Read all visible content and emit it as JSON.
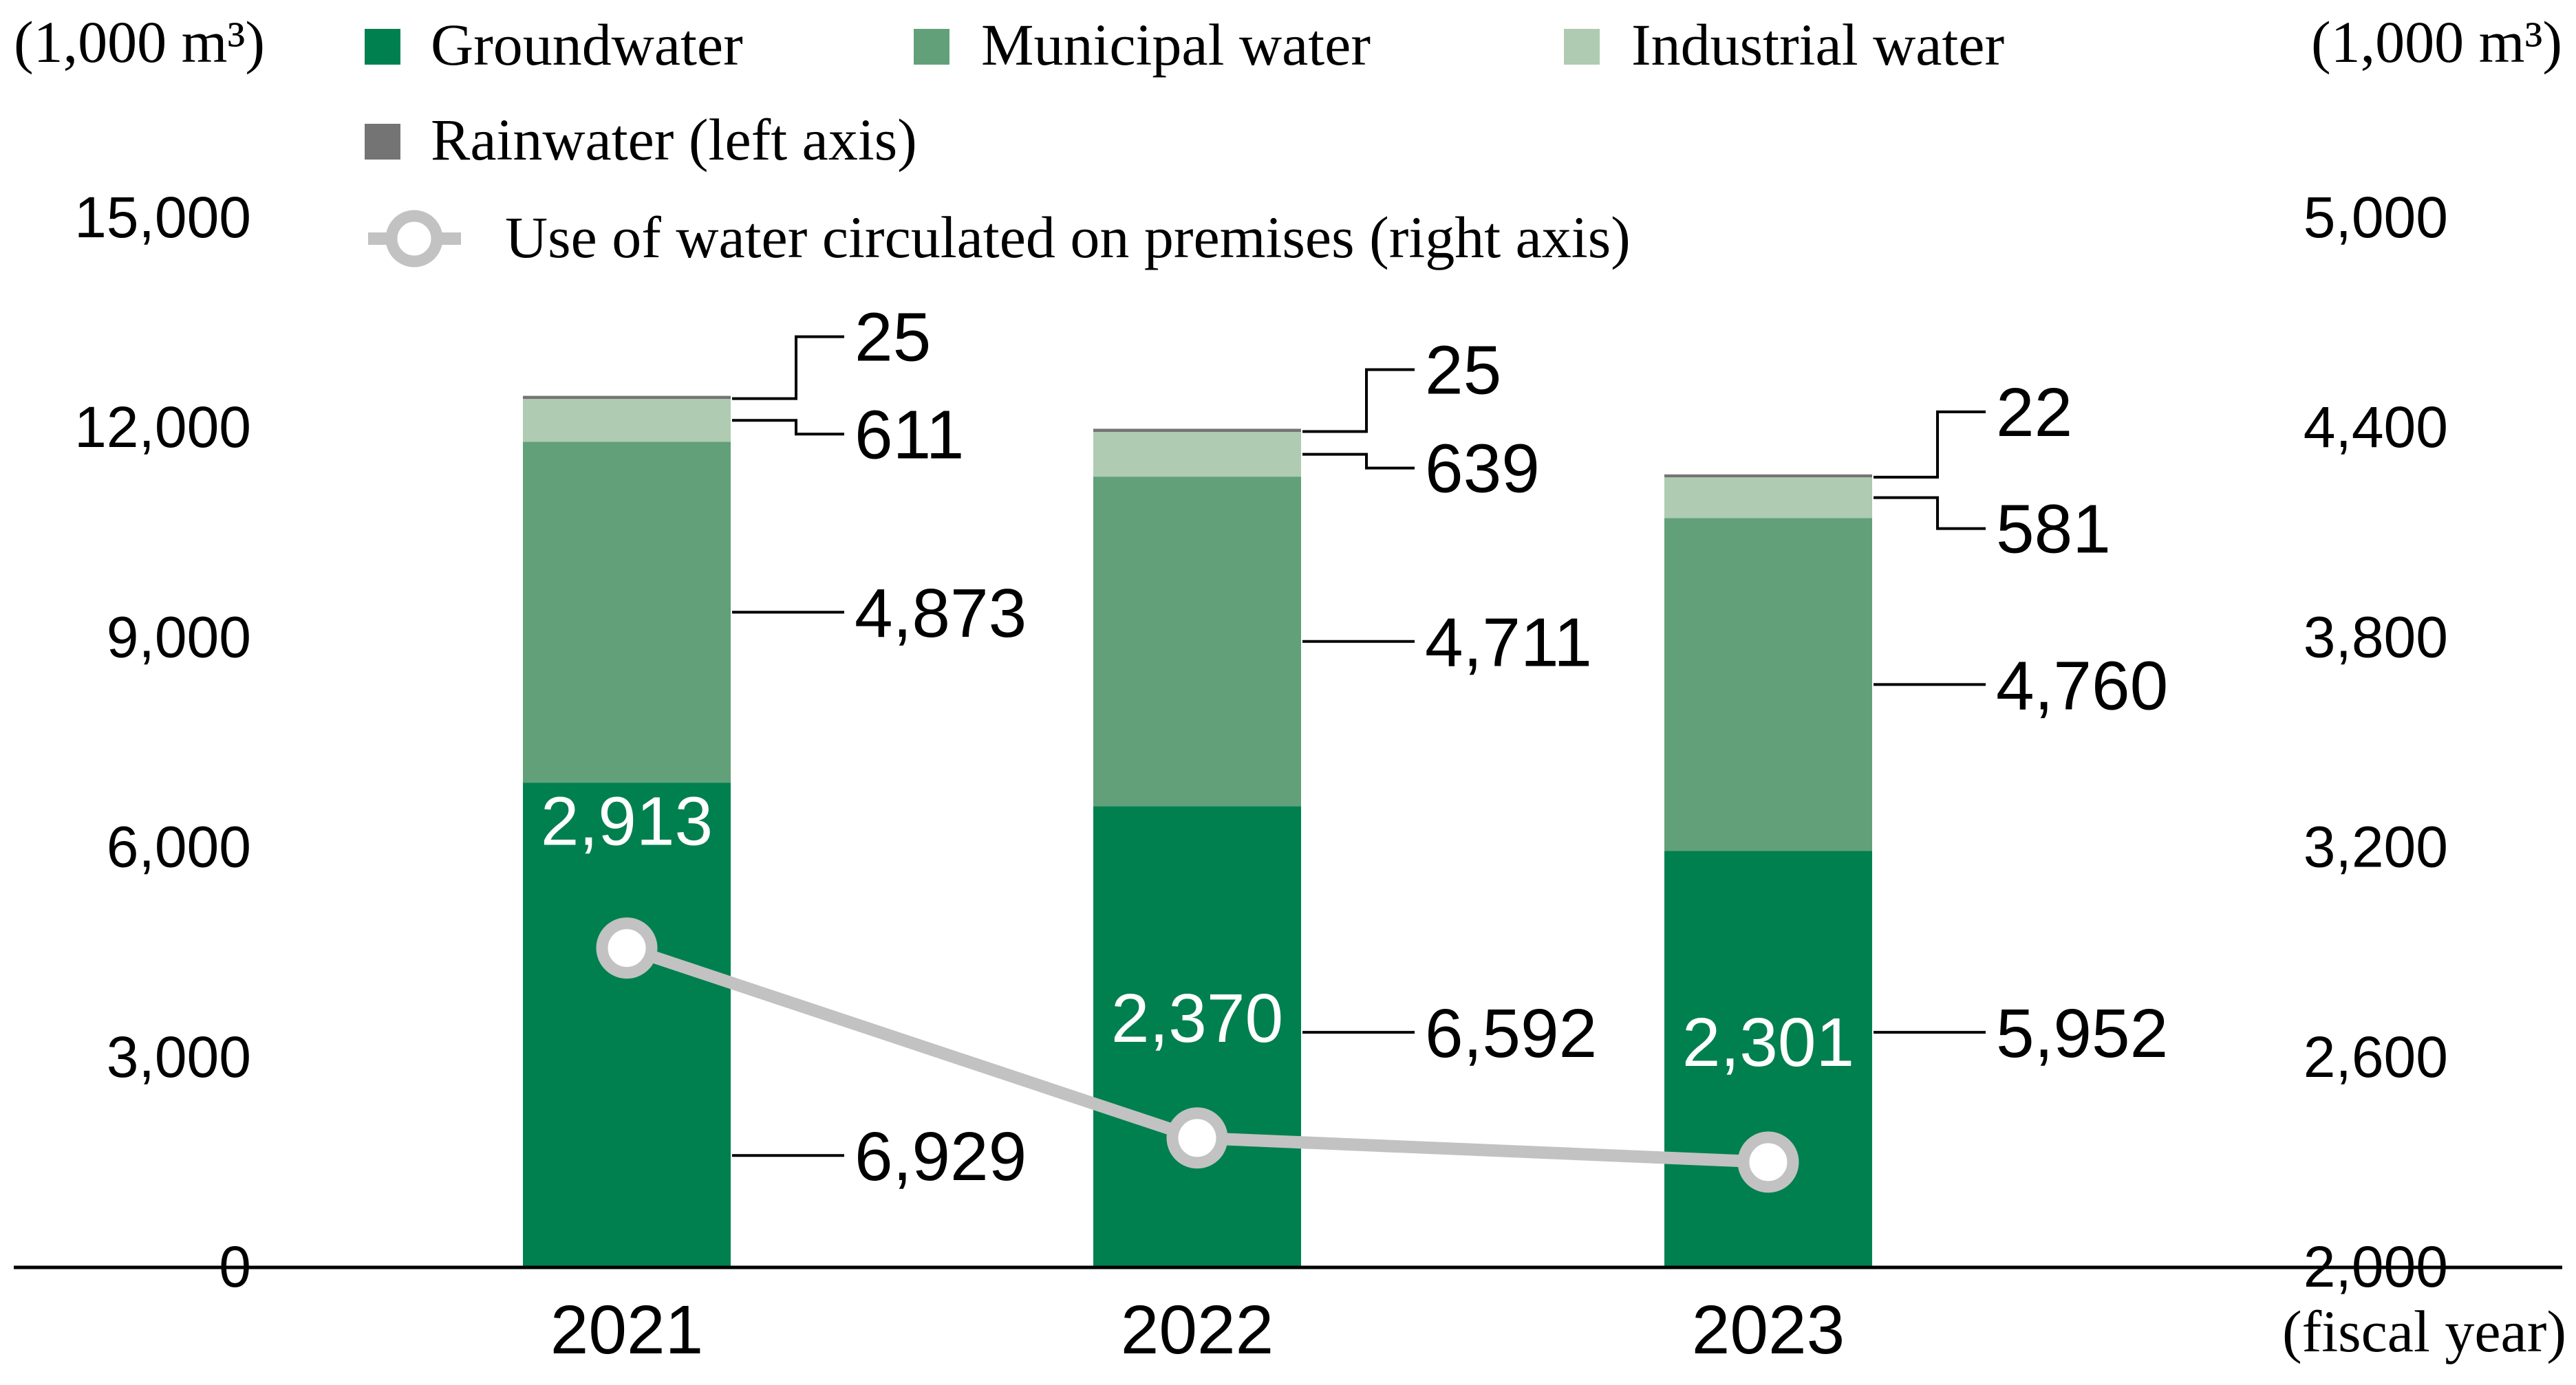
{
  "colors": {
    "groundwater": "#00804f",
    "municipal": "#62a07a",
    "industrial": "#afcbb1",
    "rainwater": "#747474",
    "circulated_line": "#c2c2c2",
    "axis": "#000000",
    "label_inside": "#ffffff"
  },
  "legend": {
    "groundwater": "Groundwater",
    "municipal": "Municipal water",
    "industrial": "Industrial water",
    "rainwater": "Rainwater (left axis)",
    "circulated": "Use of water circulated on premises (right axis)"
  },
  "axes": {
    "left_unit": "(1,000 m³)",
    "right_unit": "(1,000 m³)",
    "x_unit": "(fiscal year)"
  },
  "chart_data": {
    "type": "bar",
    "stacked": true,
    "categories": [
      "2021",
      "2022",
      "2023"
    ],
    "series": [
      {
        "name": "Groundwater",
        "axis": "left",
        "values": [
          6929,
          6592,
          5952
        ],
        "labels": [
          "6,929",
          "6,592",
          "5,952"
        ]
      },
      {
        "name": "Municipal water",
        "axis": "left",
        "values": [
          4873,
          4711,
          4760
        ],
        "labels": [
          "4,873",
          "4,711",
          "4,760"
        ]
      },
      {
        "name": "Industrial water",
        "axis": "left",
        "values": [
          611,
          639,
          581
        ],
        "labels": [
          "611",
          "639",
          "581"
        ]
      },
      {
        "name": "Rainwater (left axis)",
        "axis": "left",
        "values": [
          25,
          25,
          22
        ],
        "labels": [
          "25",
          "25",
          "22"
        ]
      },
      {
        "name": "Use of water circulated on premises (right axis)",
        "type": "line",
        "axis": "right",
        "values": [
          2913,
          2370,
          2301
        ],
        "labels": [
          "2,913",
          "2,370",
          "2,301"
        ]
      }
    ],
    "left_axis": {
      "ylim": [
        0,
        15000
      ],
      "ticks": [
        "0",
        "3,000",
        "6,000",
        "9,000",
        "12,000",
        "15,000"
      ],
      "values": [
        0,
        3000,
        6000,
        9000,
        12000,
        15000
      ]
    },
    "right_axis": {
      "ylim": [
        2000,
        5000
      ],
      "ticks": [
        "2,000",
        "2,600",
        "3,200",
        "3,800",
        "4,400",
        "5,000"
      ],
      "values": [
        2000,
        2600,
        3200,
        3800,
        4400,
        5000
      ]
    },
    "legend_position": "top",
    "grid": false
  }
}
